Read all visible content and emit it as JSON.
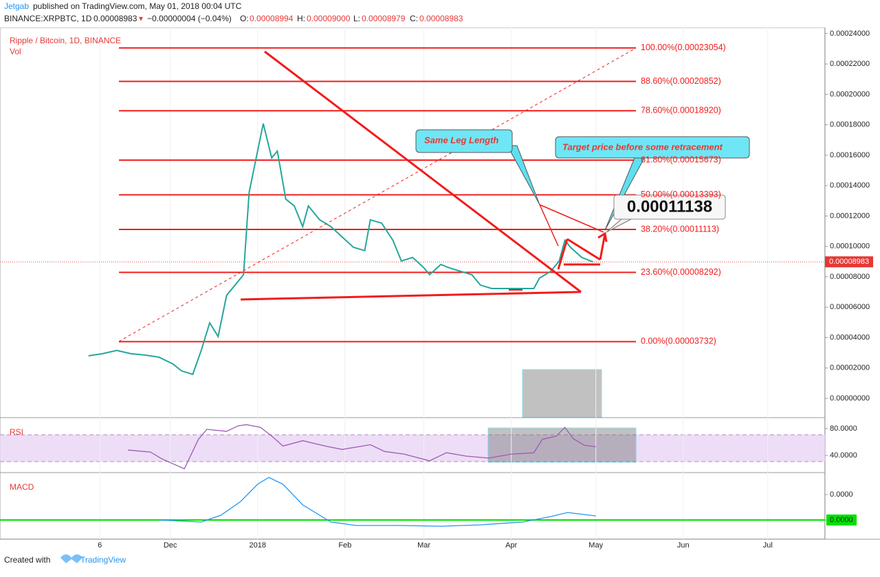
{
  "header": {
    "author": "Jetgab",
    "published": "published on TradingView.com, May 01, 2018 00:04 UTC",
    "symbol": "BINANCE:XRPBTC, 1D",
    "arrow": "▼",
    "change": "−0.00000004 (−0.04%)",
    "o_label": "O:",
    "open": "0.00008994",
    "h_label": "H:",
    "high": "0.00009000",
    "l_label": "L:",
    "low": "0.00008979",
    "c_label": "C:"
  },
  "chart_data": [
    {
      "type": "line",
      "title": "Ripple / Bitcoin, 1D, BINANCE",
      "subtitle": "Vol",
      "color": "#26a69a",
      "x": [
        1,
        6,
        11,
        16,
        21,
        26,
        31,
        34,
        38,
        41,
        44,
        47,
        50,
        54,
        56,
        58,
        60,
        63,
        66,
        68,
        71,
        74,
        77,
        79,
        83,
        87,
        91,
        95,
        99,
        101,
        105,
        109,
        112,
        116,
        120,
        122,
        126,
        129,
        133,
        137,
        140,
        144,
        148,
        151,
        155,
        159,
        161,
        165,
        168,
        170,
        172,
        176,
        180
      ],
      "values": [
        2.8e-05,
        2.94e-05,
        3.16e-05,
        2.94e-05,
        2.85e-05,
        2.71e-05,
        2.26e-05,
        1.81e-05,
        1.58e-05,
        3.16e-05,
        4.97e-05,
        4.07e-05,
        6.78e-05,
        7.68e-05,
        8.14e-05,
        0.0001356,
        0.0001537,
        0.0001808,
        0.0001582,
        0.0001627,
        0.0001311,
        0.0001266,
        0.000113,
        0.0001266,
        0.0001175,
        0.000113,
        0.0001062,
        9.94e-05,
        9.72e-05,
        0.0001175,
        0.0001153,
        0.000104,
        9.04e-05,
        9.27e-05,
        8.59e-05,
        8.14e-05,
        8.81e-05,
        8.59e-05,
        8.36e-05,
        8.14e-05,
        7.46e-05,
        7.23e-05,
        7.23e-05,
        7.23e-05,
        7.23e-05,
        7.23e-05,
        7.91e-05,
        8.36e-05,
        9.04e-05,
        0.000104,
        9.94e-05,
        9.27e-05,
        8.98e-05
      ],
      "xlim": [
        -30.4,
        262.3
      ],
      "xticks": [
        {
          "value": 5,
          "label": "6"
        },
        {
          "value": 30,
          "label": "Dec"
        },
        {
          "value": 61,
          "label": "2018"
        },
        {
          "value": 92,
          "label": "Feb"
        },
        {
          "value": 120,
          "label": "Mar"
        },
        {
          "value": 151,
          "label": "Apr"
        },
        {
          "value": 181,
          "label": "May"
        },
        {
          "value": 212,
          "label": "Jun"
        },
        {
          "value": 242,
          "label": "Jul"
        }
      ],
      "ylim": [
        -1.22e-05,
        0.000244
      ],
      "yticks": [
        {
          "value": 0.00024,
          "label": "0.00024000"
        },
        {
          "value": 0.00022,
          "label": "0.00022000"
        },
        {
          "value": 0.0002,
          "label": "0.00020000"
        },
        {
          "value": 0.00018,
          "label": "0.00018000"
        },
        {
          "value": 0.00016,
          "label": "0.00016000"
        },
        {
          "value": 0.00014,
          "label": "0.00014000"
        },
        {
          "value": 0.00012,
          "label": "0.00012000"
        },
        {
          "value": 0.0001,
          "label": "0.00010000"
        },
        {
          "value": 8e-05,
          "label": "0.00008000"
        },
        {
          "value": 6e-05,
          "label": "0.00006000"
        },
        {
          "value": 4e-05,
          "label": "0.00004000"
        },
        {
          "value": 2e-05,
          "label": "0.00002000"
        },
        {
          "value": 0,
          "label": "0.00000000"
        }
      ],
      "last_price": {
        "value": 8.983e-05,
        "label": "0.00008983"
      },
      "fib_color": "#f21b1b",
      "fib_levels": [
        {
          "value": 0.00023054,
          "label": "100.00%(0.00023054)"
        },
        {
          "value": 0.00020852,
          "label": "88.60%(0.00020852)"
        },
        {
          "value": 0.0001892,
          "label": "78.60%(0.00018920)"
        },
        {
          "value": 0.00015673,
          "label": "61.80%(0.00015673)"
        },
        {
          "value": 0.00013393,
          "label": "50.00%(0.00013393)"
        },
        {
          "value": 0.00011113,
          "label": "38.20%(0.00011113)"
        },
        {
          "value": 8.292e-05,
          "label": "23.60%(0.00008292)"
        },
        {
          "value": 3.732e-05,
          "label": "0.00%(0.00003732)"
        }
      ],
      "annotations": [
        "Same Leg Length",
        "Target price before some retracement",
        "0.00011138"
      ]
    },
    {
      "type": "line",
      "title": "RSI",
      "color": "#9c5bb0",
      "x": [
        15,
        23,
        27,
        35,
        40,
        43,
        50,
        54,
        57,
        62,
        66,
        70,
        77,
        85,
        91,
        101,
        106,
        113,
        122,
        128,
        135,
        143,
        151,
        159,
        162,
        167,
        170,
        173,
        177,
        181
      ],
      "values": [
        48,
        45,
        35,
        20,
        64,
        79,
        76,
        84,
        86,
        82,
        69,
        54,
        62,
        54,
        49,
        56,
        46,
        42,
        32,
        44,
        39,
        36,
        42,
        44,
        64,
        69,
        82,
        65,
        55,
        53
      ],
      "ylim": [
        15.4,
        94.4
      ],
      "yticks": [
        {
          "value": 80,
          "label": "80.0000"
        },
        {
          "value": 40,
          "label": "40.0000"
        }
      ]
    },
    {
      "type": "line",
      "title": "MACD",
      "color": "#2196f3",
      "x": [
        26,
        41,
        48,
        55,
        61,
        65,
        70,
        77,
        87,
        96,
        111,
        126,
        140,
        155,
        165,
        171,
        177,
        181
      ],
      "values": [
        0,
        -1.6e-07,
        3.8e-07,
        1.46e-06,
        2.81e-06,
        3.35e-06,
        2.81e-06,
        1.19e-06,
        -1.6e-07,
        -4.3e-07,
        -4.3e-07,
        -4.9e-07,
        -3.8e-07,
        -1.6e-07,
        2.7e-07,
        5.9e-07,
        4.3e-07,
        3.2e-07
      ],
      "ylim": [
        -1.51e-06,
        3.62e-06
      ],
      "yticks": [
        {
          "value": 2e-06,
          "label": "0.0000"
        },
        {
          "value": 0,
          "label": "0.0000"
        }
      ]
    }
  ],
  "footer": {
    "created": "Created with",
    "brand": "TradingView"
  }
}
